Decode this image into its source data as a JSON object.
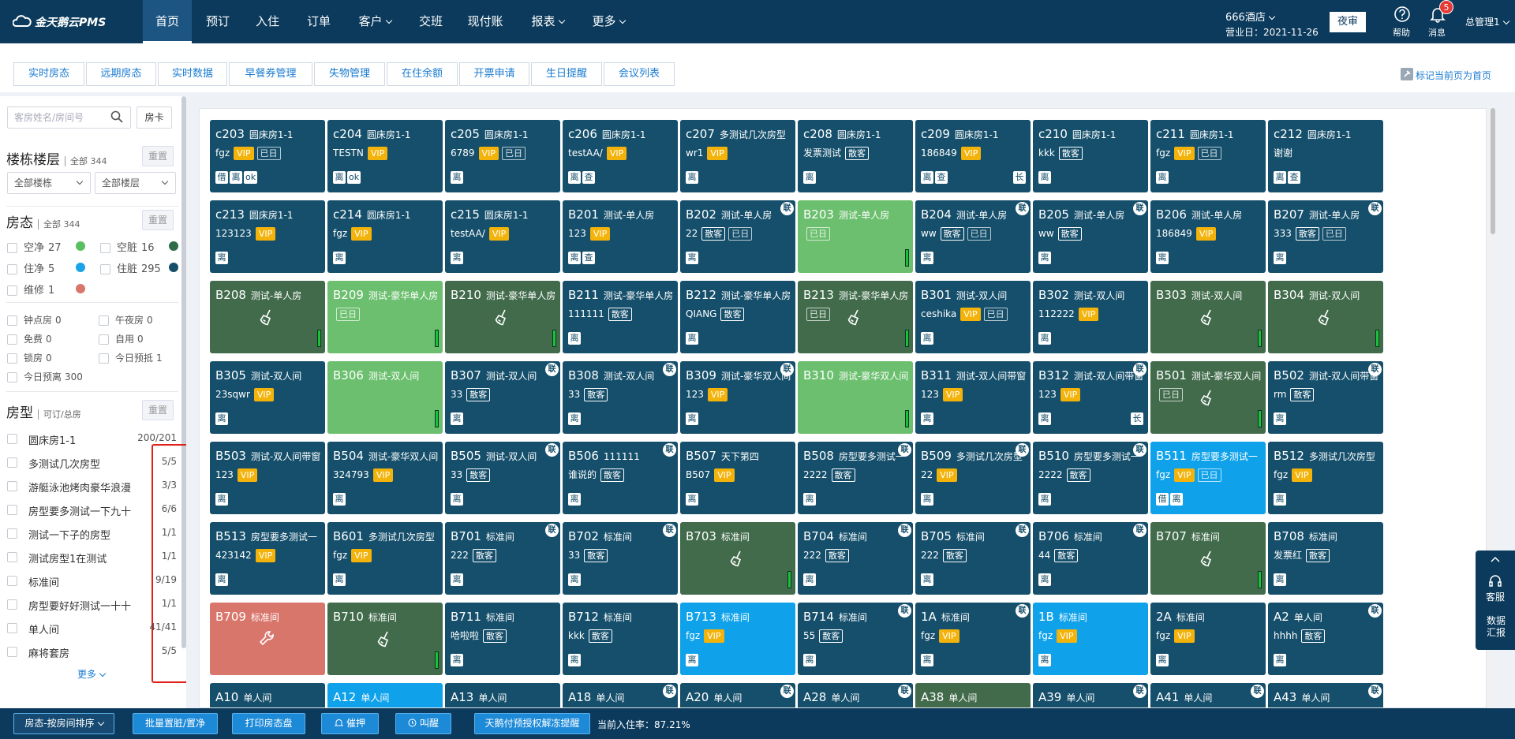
{
  "header": {
    "logo": "金天鹅云PMS",
    "nav": [
      "首页",
      "预订",
      "入住",
      "订单",
      "客户",
      "交班",
      "现付账",
      "报表",
      "更多"
    ],
    "hotel": "666酒店",
    "business_day": "营业日：2021-11-26",
    "night_audit": "夜审",
    "help": "帮助",
    "messages": "消息",
    "message_count": 5,
    "user": "总管理1"
  },
  "tabs": [
    "实时房态",
    "远期房态",
    "实时数据",
    "早餐券管理",
    "失物管理",
    "在住余额",
    "开票申请",
    "生日提醒",
    "会议列表"
  ],
  "pin_home": "标记当前页为首页",
  "sidebar": {
    "search_placeholder": "客房姓名/房间号",
    "card_button": "房卡",
    "building": {
      "title": "楼栋楼层",
      "count": "全部 344",
      "reset": "重置",
      "selects": [
        "全部楼栋",
        "全部楼层"
      ]
    },
    "status": {
      "title": "房态",
      "count": "全部 344",
      "reset": "重置",
      "items": [
        {
          "label": "空净",
          "count": 27,
          "color": "#5cbf5f"
        },
        {
          "label": "空脏",
          "count": 16,
          "color": "#2f6b48"
        },
        {
          "label": "住净",
          "count": 5,
          "color": "#1aa3e8"
        },
        {
          "label": "住脏",
          "count": 295,
          "color": "#164e69"
        },
        {
          "label": "维修",
          "count": 1,
          "color": "#d9766c"
        }
      ],
      "extras": [
        {
          "label": "钟点房",
          "count": 0
        },
        {
          "label": "午夜房",
          "count": 0
        },
        {
          "label": "免费",
          "count": 0
        },
        {
          "label": "自用",
          "count": 0
        },
        {
          "label": "锁房",
          "count": 0
        },
        {
          "label": "今日预抵",
          "count": 1
        },
        {
          "label": "今日预离",
          "count": 300
        }
      ]
    },
    "room_types": {
      "title": "房型",
      "count": "可订/总房",
      "reset": "重置",
      "items": [
        {
          "name": "圆床房1-1",
          "count": "200/201"
        },
        {
          "name": "多测试几次房型",
          "count": "5/5"
        },
        {
          "name": "游艇泳池烤肉豪华浪漫",
          "count": "3/3"
        },
        {
          "name": "房型要多测试一下九十",
          "count": "6/6"
        },
        {
          "name": "测试一下子的房型",
          "count": "1/1"
        },
        {
          "name": "测试房型1在测试",
          "count": "1/1"
        },
        {
          "name": "标准间",
          "count": "9/19"
        },
        {
          "name": "房型要好好测试一十十",
          "count": "1/1"
        },
        {
          "name": "单人间",
          "count": "41/41"
        },
        {
          "name": "麻将套房",
          "count": "5/5"
        }
      ],
      "more": "更多"
    }
  },
  "rooms": [
    {
      "no": "c203",
      "type": "圆床房1-1",
      "guest": "fgz",
      "tags": [
        "VIP",
        "已日"
      ],
      "marks": [
        "借",
        "离",
        "ok"
      ],
      "color": "#154f6b"
    },
    {
      "no": "c204",
      "type": "圆床房1-1",
      "guest": "TESTN",
      "tags": [
        "VIP"
      ],
      "marks": [
        "离",
        "ok"
      ],
      "color": "#154f6b"
    },
    {
      "no": "c205",
      "type": "圆床房1-1",
      "guest": "6789",
      "tags": [
        "VIP",
        "已日"
      ],
      "marks": [
        "离"
      ],
      "color": "#154f6b"
    },
    {
      "no": "c206",
      "type": "圆床房1-1",
      "guest": "testAA/",
      "tags": [
        "VIP"
      ],
      "marks": [
        "离",
        "查"
      ],
      "color": "#154f6b"
    },
    {
      "no": "c207",
      "type": "多测试几次房型",
      "guest": "wr1",
      "tags": [
        "VIP"
      ],
      "marks": [
        "离"
      ],
      "color": "#154f6b"
    },
    {
      "no": "c208",
      "type": "圆床房1-1",
      "guest": "发票测试",
      "tags": [
        "散客"
      ],
      "marks": [
        "离"
      ],
      "color": "#154f6b"
    },
    {
      "no": "c209",
      "type": "圆床房1-1",
      "guest": "186849",
      "tags": [
        "VIP"
      ],
      "marks": [
        "离",
        "查"
      ],
      "extra": "长",
      "color": "#154f6b"
    },
    {
      "no": "c210",
      "type": "圆床房1-1",
      "guest": "kkk",
      "tags": [
        "散客"
      ],
      "marks": [
        "离"
      ],
      "color": "#154f6b"
    },
    {
      "no": "c211",
      "type": "圆床房1-1",
      "guest": "fgz",
      "tags": [
        "VIP",
        "已日"
      ],
      "marks": [
        "离"
      ],
      "color": "#154f6b"
    },
    {
      "no": "c212",
      "type": "圆床房1-1",
      "guest": "谢谢",
      "marks": [
        "离",
        "查"
      ],
      "color": "#154f6b"
    },
    {
      "no": "c213",
      "type": "圆床房1-1",
      "guest": "123123",
      "tags": [
        "VIP"
      ],
      "marks": [
        "离"
      ],
      "color": "#154f6b"
    },
    {
      "no": "c214",
      "type": "圆床房1-1",
      "guest": "fgz",
      "tags": [
        "VIP"
      ],
      "marks": [
        "离"
      ],
      "color": "#154f6b"
    },
    {
      "no": "c215",
      "type": "圆床房1-1",
      "guest": "testAA/",
      "tags": [
        "VIP"
      ],
      "marks": [
        "离"
      ],
      "color": "#154f6b"
    },
    {
      "no": "B201",
      "type": "测试-单人房",
      "guest": "123",
      "tags": [
        "VIP"
      ],
      "marks": [
        "离",
        "查"
      ],
      "color": "#154f6b"
    },
    {
      "no": "B202",
      "type": "测试-单人房",
      "link": "联",
      "guest": "22",
      "tags": [
        "散客",
        "已日"
      ],
      "marks": [
        "离"
      ],
      "color": "#154f6b"
    },
    {
      "no": "B203",
      "type": "测试-单人房",
      "tags": [
        "已日"
      ],
      "color": "#6bbf6e"
    },
    {
      "no": "B204",
      "type": "测试-单人房",
      "link": "联",
      "guest": "ww",
      "tags": [
        "散客",
        "已日"
      ],
      "marks": [
        "离"
      ],
      "color": "#154f6b"
    },
    {
      "no": "B205",
      "type": "测试-单人房",
      "link": "联",
      "guest": "ww",
      "tags": [
        "散客"
      ],
      "marks": [
        "离"
      ],
      "color": "#154f6b"
    },
    {
      "no": "B206",
      "type": "测试-单人房",
      "guest": "186849",
      "tags": [
        "VIP"
      ],
      "marks": [
        "离"
      ],
      "color": "#154f6b"
    },
    {
      "no": "B207",
      "type": "测试-单人房",
      "link": "联",
      "guest": "333",
      "tags": [
        "散客",
        "已日"
      ],
      "marks": [
        "离"
      ],
      "color": "#154f6b"
    },
    {
      "no": "B208",
      "type": "测试-单人房",
      "icon": "broom",
      "color": "#416b4b"
    },
    {
      "no": "B209",
      "type": "测试-豪华单人房",
      "tags": [
        "已日"
      ],
      "color": "#6bbf6e"
    },
    {
      "no": "B210",
      "type": "测试-豪华单人房",
      "icon": "broom",
      "color": "#416b4b"
    },
    {
      "no": "B211",
      "type": "测试-豪华单人房",
      "guest": "111111",
      "tags": [
        "散客"
      ],
      "marks": [
        "离"
      ],
      "color": "#154f6b"
    },
    {
      "no": "B212",
      "type": "测试-豪华单人房",
      "guest": "QIANG",
      "tags": [
        "散客"
      ],
      "marks": [
        "离"
      ],
      "color": "#154f6b"
    },
    {
      "no": "B213",
      "type": "测试-豪华单人房",
      "icon": "broom",
      "tags": [
        "已日"
      ],
      "color": "#416b4b"
    },
    {
      "no": "B301",
      "type": "测试-双人间",
      "guest": "ceshika",
      "tags": [
        "VIP",
        "已日"
      ],
      "marks": [
        "离"
      ],
      "color": "#154f6b"
    },
    {
      "no": "B302",
      "type": "测试-双人间",
      "guest": "112222",
      "tags": [
        "VIP"
      ],
      "marks": [
        "离"
      ],
      "color": "#154f6b"
    },
    {
      "no": "B303",
      "type": "测试-双人间",
      "icon": "broom",
      "color": "#416b4b"
    },
    {
      "no": "B304",
      "type": "测试-双人间",
      "icon": "broom",
      "color": "#416b4b"
    },
    {
      "no": "B305",
      "type": "测试-双人间",
      "guest": "23sqwr",
      "tags": [
        "VIP"
      ],
      "marks": [
        "离"
      ],
      "color": "#154f6b"
    },
    {
      "no": "B306",
      "type": "测试-双人间",
      "color": "#6bbf6e"
    },
    {
      "no": "B307",
      "type": "测试-双人间",
      "link": "联",
      "guest": "33",
      "tags": [
        "散客"
      ],
      "marks": [
        "离"
      ],
      "color": "#154f6b"
    },
    {
      "no": "B308",
      "type": "测试-双人间",
      "link": "联",
      "guest": "33",
      "tags": [
        "散客"
      ],
      "marks": [
        "离"
      ],
      "color": "#154f6b"
    },
    {
      "no": "B309",
      "type": "测试-豪华双人间",
      "link": "联",
      "guest": "123",
      "tags": [
        "VIP"
      ],
      "marks": [
        "离"
      ],
      "color": "#154f6b"
    },
    {
      "no": "B310",
      "type": "测试-豪华双人间",
      "color": "#6bbf6e"
    },
    {
      "no": "B311",
      "type": "测试-双人间带窗",
      "guest": "123",
      "tags": [
        "VIP"
      ],
      "marks": [
        "离"
      ],
      "color": "#154f6b"
    },
    {
      "no": "B312",
      "type": "测试-双人间带窗",
      "link": "联",
      "guest": "123",
      "tags": [
        "VIP"
      ],
      "marks": [
        "离"
      ],
      "extra": "长",
      "color": "#154f6b"
    },
    {
      "no": "B501",
      "type": "测试-豪华双人间",
      "icon": "broom",
      "tags": [
        "已日"
      ],
      "color": "#416b4b"
    },
    {
      "no": "B502",
      "type": "测试-双人间带窗",
      "link": "联",
      "guest": "rm",
      "tags": [
        "散客"
      ],
      "marks": [
        "离"
      ],
      "color": "#154f6b"
    },
    {
      "no": "B503",
      "type": "测试-双人间带窗",
      "guest": "123",
      "tags": [
        "VIP"
      ],
      "marks": [
        "离"
      ],
      "color": "#154f6b"
    },
    {
      "no": "B504",
      "type": "测试-豪华双人间",
      "guest": "324793",
      "tags": [
        "VIP"
      ],
      "marks": [
        "离"
      ],
      "color": "#154f6b"
    },
    {
      "no": "B505",
      "type": "测试-双人间",
      "link": "联",
      "guest": "33",
      "tags": [
        "散客"
      ],
      "marks": [
        "离"
      ],
      "color": "#154f6b"
    },
    {
      "no": "B506",
      "type": "111111",
      "link": "联",
      "guest": "谁说的",
      "tags": [
        "散客"
      ],
      "marks": [
        "离"
      ],
      "color": "#154f6b"
    },
    {
      "no": "B507",
      "type": "天下第四",
      "guest": "B507",
      "tags": [
        "VIP"
      ],
      "marks": [
        "离"
      ],
      "color": "#154f6b"
    },
    {
      "no": "B508",
      "type": "房型要多测试一",
      "link": "联",
      "guest": "2222",
      "tags": [
        "散客"
      ],
      "marks": [
        "离"
      ],
      "color": "#154f6b"
    },
    {
      "no": "B509",
      "type": "多测试几次房型",
      "link": "联",
      "guest": "22",
      "tags": [
        "VIP"
      ],
      "marks": [
        "离"
      ],
      "color": "#154f6b"
    },
    {
      "no": "B510",
      "type": "房型要多测试一",
      "link": "联",
      "guest": "2222",
      "tags": [
        "散客"
      ],
      "marks": [
        "离"
      ],
      "color": "#154f6b"
    },
    {
      "no": "B511",
      "type": "房型要多测试一",
      "guest": "fgz",
      "tags": [
        "VIP",
        "已日"
      ],
      "marks": [
        "借",
        "离"
      ],
      "color": "#0fa2ea"
    },
    {
      "no": "B512",
      "type": "多测试几次房型",
      "guest": "fgz",
      "tags": [
        "VIP"
      ],
      "marks": [
        "离"
      ],
      "color": "#154f6b"
    },
    {
      "no": "B513",
      "type": "房型要多测试一",
      "guest": "423142",
      "tags": [
        "VIP"
      ],
      "marks": [
        "离"
      ],
      "color": "#154f6b"
    },
    {
      "no": "B601",
      "type": "多测试几次房型",
      "guest": "fgz",
      "tags": [
        "VIP"
      ],
      "marks": [
        "离"
      ],
      "color": "#154f6b"
    },
    {
      "no": "B701",
      "type": "标准间",
      "link": "联",
      "guest": "222",
      "tags": [
        "散客"
      ],
      "marks": [
        "离"
      ],
      "color": "#154f6b"
    },
    {
      "no": "B702",
      "type": "标准间",
      "link": "联",
      "guest": "33",
      "tags": [
        "散客"
      ],
      "marks": [
        "离"
      ],
      "color": "#154f6b"
    },
    {
      "no": "B703",
      "type": "标准间",
      "icon": "broom",
      "color": "#416b4b"
    },
    {
      "no": "B704",
      "type": "标准间",
      "link": "联",
      "guest": "222",
      "tags": [
        "散客"
      ],
      "marks": [
        "离"
      ],
      "color": "#154f6b"
    },
    {
      "no": "B705",
      "type": "标准间",
      "link": "联",
      "guest": "222",
      "tags": [
        "散客"
      ],
      "marks": [
        "离"
      ],
      "color": "#154f6b"
    },
    {
      "no": "B706",
      "type": "标准间",
      "link": "联",
      "guest": "44",
      "tags": [
        "散客"
      ],
      "marks": [
        "离"
      ],
      "color": "#154f6b"
    },
    {
      "no": "B707",
      "type": "标准间",
      "icon": "broom",
      "color": "#416b4b"
    },
    {
      "no": "B708",
      "type": "标准间",
      "guest": "发票红",
      "tags": [
        "散客"
      ],
      "marks": [
        "离"
      ],
      "color": "#154f6b"
    },
    {
      "no": "B709",
      "type": "标准间",
      "icon": "wrench",
      "color": "#d9766c"
    },
    {
      "no": "B710",
      "type": "标准间",
      "icon": "broom",
      "color": "#416b4b"
    },
    {
      "no": "B711",
      "type": "标准间",
      "guest": "哈啦啦",
      "tags": [
        "散客"
      ],
      "marks": [
        "离"
      ],
      "color": "#154f6b"
    },
    {
      "no": "B712",
      "type": "标准间",
      "guest": "kkk",
      "tags": [
        "散客"
      ],
      "marks": [
        "离"
      ],
      "color": "#154f6b"
    },
    {
      "no": "B713",
      "type": "标准间",
      "guest": "fgz",
      "tags": [
        "VIP"
      ],
      "marks": [
        "离"
      ],
      "color": "#0fa2ea"
    },
    {
      "no": "B714",
      "type": "标准间",
      "link": "联",
      "guest": "55",
      "tags": [
        "散客"
      ],
      "marks": [
        "离"
      ],
      "color": "#154f6b"
    },
    {
      "no": "1A",
      "type": "标准间",
      "link": "联",
      "guest": "fgz",
      "tags": [
        "VIP"
      ],
      "marks": [
        "离"
      ],
      "color": "#154f6b"
    },
    {
      "no": "1B",
      "type": "标准间",
      "guest": "fgz",
      "tags": [
        "VIP"
      ],
      "marks": [
        "离"
      ],
      "color": "#0fa2ea"
    },
    {
      "no": "2A",
      "type": "标准间",
      "guest": "fgz",
      "tags": [
        "VIP"
      ],
      "marks": [
        "离"
      ],
      "color": "#154f6b"
    },
    {
      "no": "A2",
      "type": "单人间",
      "link": "联",
      "guest": "hhhh",
      "tags": [
        "散客"
      ],
      "marks": [
        "离"
      ],
      "color": "#154f6b"
    },
    {
      "no": "A10",
      "type": "单人间",
      "color": "#154f6b"
    },
    {
      "no": "A12",
      "type": "单人间",
      "color": "#0fa2ea"
    },
    {
      "no": "A13",
      "type": "单人间",
      "color": "#154f6b"
    },
    {
      "no": "A18",
      "type": "单人间",
      "link": "联",
      "color": "#154f6b"
    },
    {
      "no": "A20",
      "type": "单人间",
      "link": "联",
      "color": "#154f6b"
    },
    {
      "no": "A28",
      "type": "单人间",
      "link": "联",
      "color": "#154f6b"
    },
    {
      "no": "A38",
      "type": "单人间",
      "color": "#416b4b"
    },
    {
      "no": "A39",
      "type": "单人间",
      "link": "联",
      "color": "#154f6b"
    },
    {
      "no": "A41",
      "type": "单人间",
      "link": "联",
      "color": "#154f6b"
    },
    {
      "no": "A43",
      "type": "单人间",
      "link": "联",
      "color": "#154f6b"
    }
  ],
  "bottom_bar": {
    "buttons": [
      "房态-按房间排序",
      "批量置脏/置净",
      "打印房态盘",
      "催押",
      "叫醒",
      "天鹅付预授权解冻提醒"
    ],
    "occupancy": "当前入住率：87.21%"
  },
  "side_panel": [
    "客服",
    "数据汇报"
  ]
}
